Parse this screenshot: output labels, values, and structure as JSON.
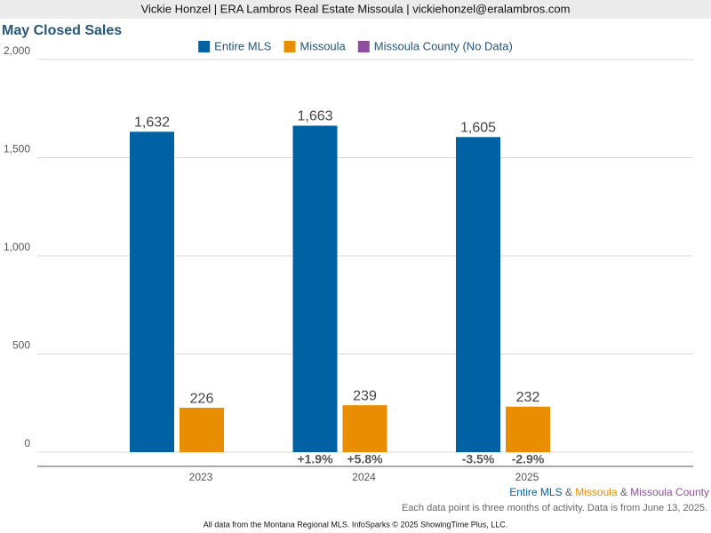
{
  "header": "Vickie Honzel | ERA Lambros Real Estate Missoula | vickiehonzel@eralambros.com",
  "chart_data": {
    "type": "bar",
    "title": "May Closed Sales",
    "categories": [
      "2023",
      "2024",
      "2025"
    ],
    "series": [
      {
        "name": "Entire MLS",
        "color": "#0062a3",
        "values": [
          1632,
          1663,
          1605
        ],
        "value_labels": [
          "1,632",
          "1,663",
          "1,605"
        ],
        "change_labels": [
          null,
          "+1.9%",
          "-3.5%"
        ]
      },
      {
        "name": "Missoula",
        "color": "#e88e00",
        "values": [
          226,
          239,
          232
        ],
        "change_labels": [
          null,
          "+5.8%",
          "-2.9%"
        ]
      },
      {
        "name": "Missoula County (No Data)",
        "color": "#8e4f9e",
        "values": [
          null,
          null,
          null
        ]
      }
    ],
    "ylim": [
      0,
      2000
    ],
    "yticks": [
      0,
      500,
      {
        "value": 1000,
        "label": "1,000"
      },
      {
        "value": 1500,
        "label": "1,500"
      },
      {
        "value": 2000,
        "label": "2,000"
      }
    ],
    "grid": true,
    "legend": "top",
    "credit": [
      {
        "text": "Entire MLS",
        "color": "#0062a3"
      },
      {
        "text": " & ",
        "color": "#666666"
      },
      {
        "text": "Missoula",
        "color": "#e88e00"
      },
      {
        "text": " & ",
        "color": "#666666"
      },
      {
        "text": "Missoula County",
        "color": "#8e4f9e"
      }
    ],
    "note": "Each data point is three months of activity. Data is from June 13, 2025."
  },
  "footer": "All data from the Montana Regional MLS. InfoSparks © 2025 ShowingTime Plus, LLC."
}
